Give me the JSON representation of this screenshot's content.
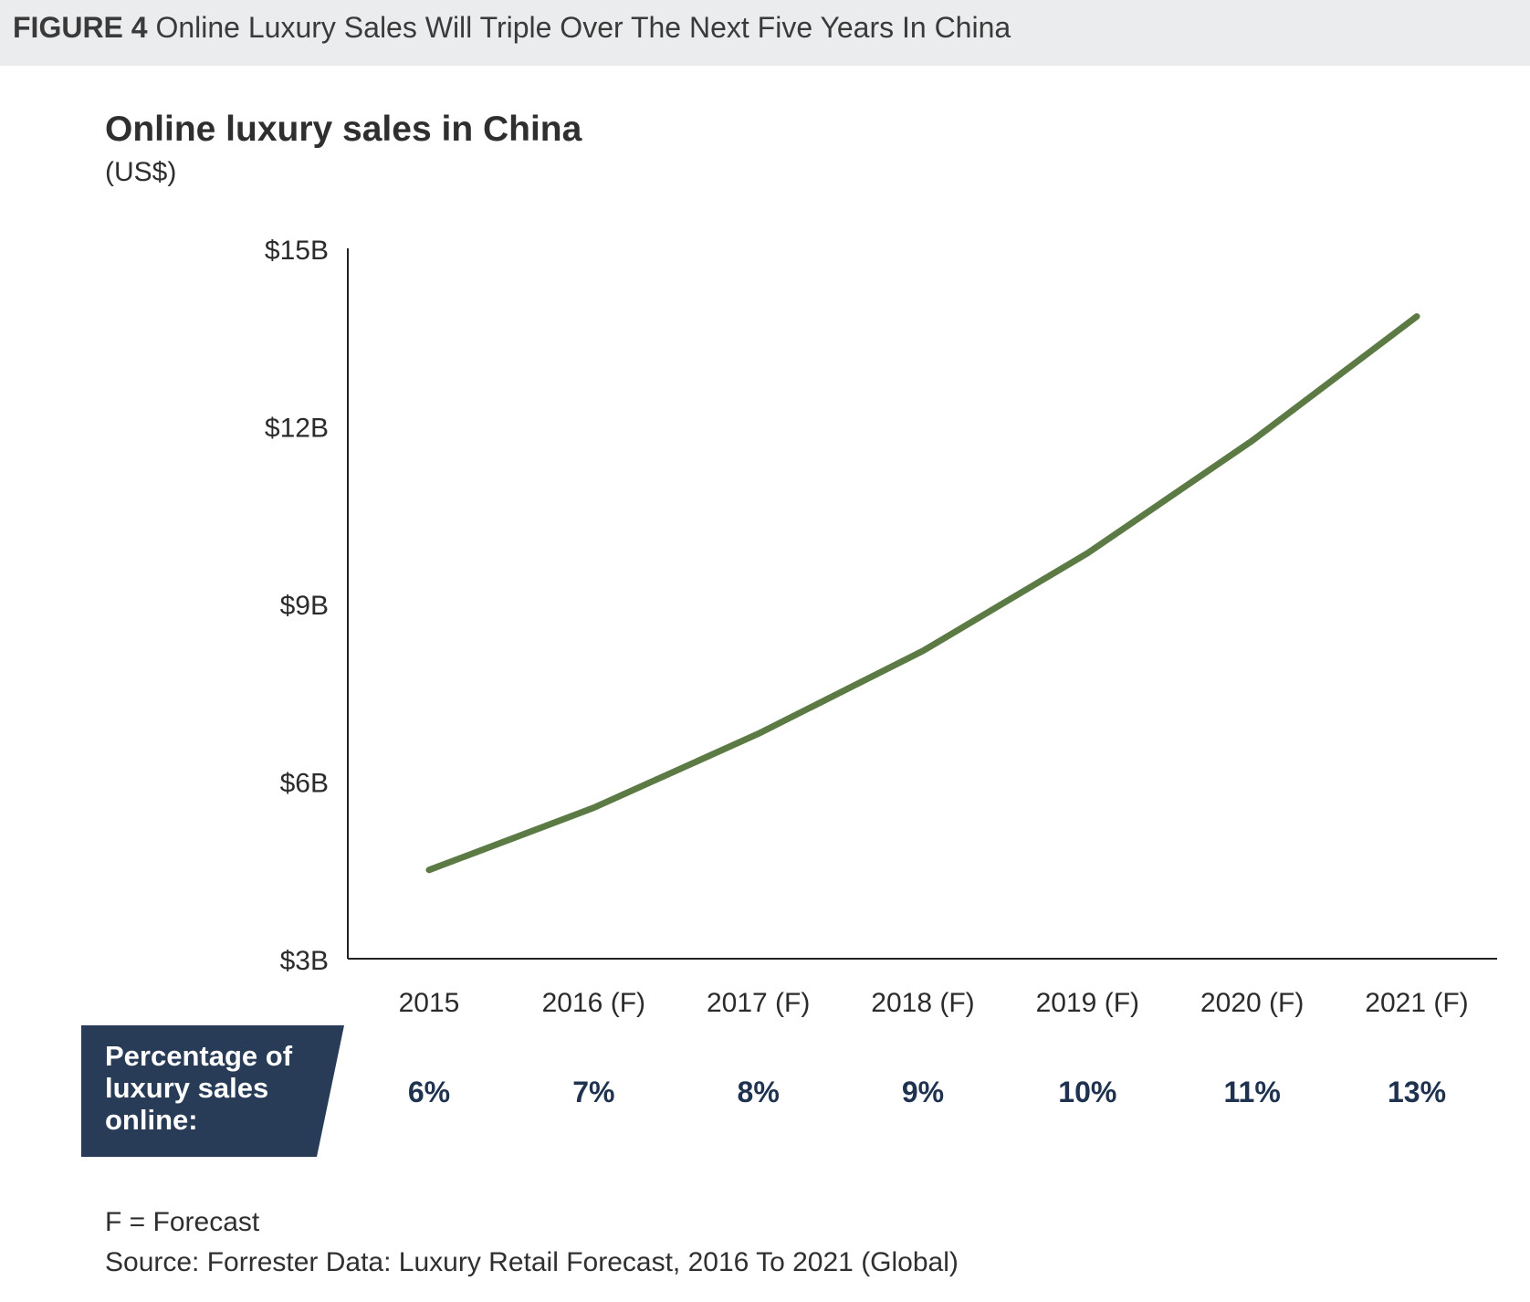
{
  "figure": {
    "label": "FIGURE 4",
    "caption": "Online Luxury Sales Will Triple Over The Next Five Years In China"
  },
  "chart_data": {
    "type": "line",
    "title": "Online luxury sales in China",
    "subtitle": "(US$)",
    "xlabel": "",
    "ylabel": "",
    "categories": [
      "2015",
      "2016 (F)",
      "2017 (F)",
      "2018 (F)",
      "2019 (F)",
      "2020 (F)",
      "2021 (F)"
    ],
    "series": [
      {
        "values": [
          4.5,
          5.55,
          6.8,
          8.2,
          9.85,
          11.75,
          13.85
        ]
      }
    ],
    "y_ticks": [
      "$3B",
      "$6B",
      "$9B",
      "$12B",
      "$15B"
    ],
    "y_tick_values": [
      3,
      6,
      9,
      12,
      15
    ],
    "ylim": [
      3,
      15
    ],
    "grid": false,
    "legend": "none",
    "line_color": "#5b7a44",
    "percentage_row": {
      "label": "Percentage of luxury sales online:",
      "values": [
        "6%",
        "7%",
        "8%",
        "9%",
        "10%",
        "11%",
        "13%"
      ],
      "box_color": "#283c58"
    }
  },
  "footnotes": {
    "forecast": "F = Forecast",
    "source": "Source: Forrester Data: Luxury Retail Forecast, 2016 To 2021 (Global)"
  }
}
